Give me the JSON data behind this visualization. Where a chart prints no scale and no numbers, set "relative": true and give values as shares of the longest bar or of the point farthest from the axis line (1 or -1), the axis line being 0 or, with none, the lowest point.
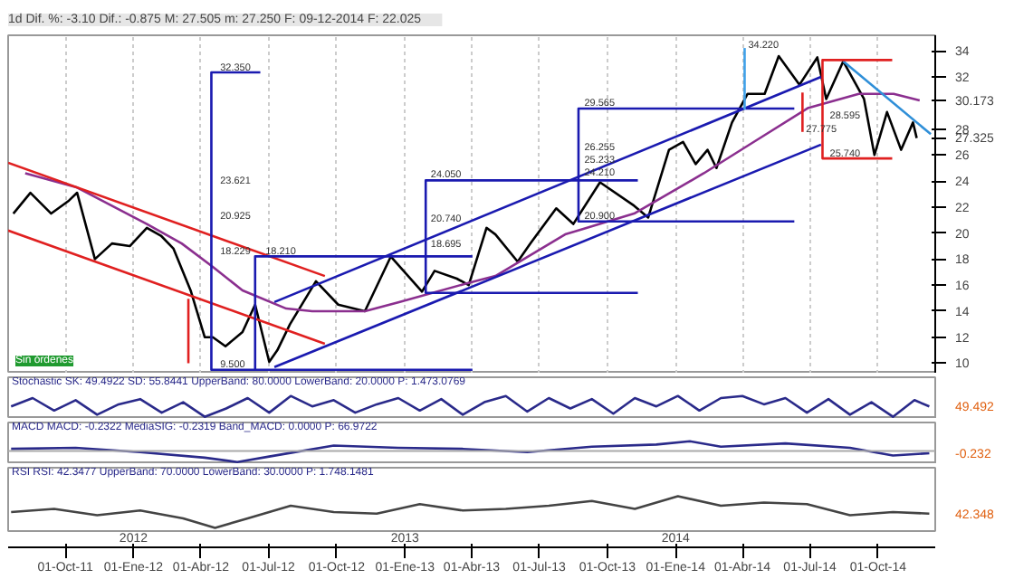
{
  "chart_data": [
    {
      "type": "line",
      "title": "1d  Dif. %: -3.10  Dif.: -0.875  M: 27.505  m: 27.250  F: 09-12-2014  F: 22.025",
      "xlim": [
        "2011-07-16",
        "2014-12-17"
      ],
      "ylim": [
        9.2,
        35.2
      ],
      "yticks": [
        10,
        12,
        14,
        16,
        18,
        20,
        22,
        24,
        26,
        28,
        {
          "value": 27.325,
          "label": "27.325"
        },
        {
          "value": 30.173,
          "label": "30.173"
        },
        32,
        34
      ],
      "xticks": [
        {
          "value": "2011-10-01",
          "label": null
        },
        {
          "value": "2012-01-01",
          "label": null
        },
        {
          "value": "2012-04-01",
          "label": null
        },
        {
          "value": "2012-07-01",
          "label": null
        },
        {
          "value": "2012-10-01",
          "label": null
        },
        {
          "value": "2013-01-01",
          "label": null
        },
        {
          "value": "2013-04-01",
          "label": null
        },
        {
          "value": "2013-07-01",
          "label": null
        },
        {
          "value": "2013-10-01",
          "label": null
        },
        {
          "value": "2014-01-01",
          "label": null
        },
        {
          "value": "2014-04-01",
          "label": null
        },
        {
          "value": "2014-07-01",
          "label": null
        },
        {
          "value": "2014-10-01",
          "label": null
        }
      ],
      "tick_labels": "y",
      "grid": "x",
      "series": [
        {
          "color": "#000000",
          "x": [
            "2011-07-23",
            "2011-08-15",
            "2011-09-12",
            "2011-10-06",
            "2011-10-17",
            "2011-11-10",
            "2011-12-03",
            "2011-12-27",
            "2012-01-19",
            "2012-02-07",
            "2012-02-24",
            "2012-03-18",
            "2012-04-06",
            "2012-04-17",
            "2012-05-04",
            "2012-05-27",
            "2012-06-13",
            "2012-07-02",
            "2012-07-13",
            "2012-07-30",
            "2012-09-03",
            "2012-10-03",
            "2012-11-08",
            "2012-12-13",
            "2013-01-24",
            "2013-02-10",
            "2013-03-12",
            "2013-03-28",
            "2013-04-21",
            "2013-05-03",
            "2013-06-02",
            "2013-06-19",
            "2013-07-24",
            "2013-08-16",
            "2013-09-21",
            "2013-11-06",
            "2013-11-25",
            "2013-12-23",
            "2014-01-11",
            "2014-01-28",
            "2014-02-13",
            "2014-02-25",
            "2014-03-18",
            "2014-04-08",
            "2014-05-01",
            "2014-05-20",
            "2014-06-17",
            "2014-07-11",
            "2014-07-23",
            "2014-08-15",
            "2014-09-12",
            "2014-09-26",
            "2014-10-13",
            "2014-11-01",
            "2014-11-17",
            "2014-11-22"
          ],
          "values": [
            21.5,
            23.1,
            21.5,
            22.5,
            23.1,
            18.0,
            19.2,
            19.0,
            20.4,
            19.8,
            18.8,
            15.6,
            12.0,
            12.0,
            11.3,
            12.4,
            14.5,
            10.1,
            11.0,
            13.0,
            16.3,
            14.5,
            14.0,
            18.2,
            15.5,
            17.1,
            16.5,
            16.0,
            20.4,
            19.9,
            17.8,
            19.2,
            21.9,
            20.7,
            23.9,
            22.1,
            21.2,
            26.4,
            27.0,
            25.3,
            26.4,
            25.0,
            28.5,
            30.7,
            30.7,
            33.6,
            31.4,
            33.5,
            30.3,
            33.2,
            30.3,
            26.0,
            29.3,
            26.4,
            28.5,
            27.3
          ]
        },
        {
          "color": "#8b2f8f",
          "x": [
            "2011-08-08",
            "2011-10-17",
            "2012-01-19",
            "2012-03-06",
            "2012-04-17",
            "2012-05-27",
            "2012-07-25",
            "2012-08-29",
            "2012-11-08",
            "2012-12-24",
            "2013-03-23",
            "2013-05-03",
            "2013-08-05",
            "2013-11-06",
            "2014-02-08",
            "2014-04-19",
            "2014-06-28",
            "2014-09-05",
            "2014-10-22",
            "2014-11-26"
          ],
          "values": [
            24.6,
            23.5,
            20.7,
            19.2,
            17.4,
            15.6,
            14.2,
            14.0,
            14.0,
            14.7,
            16.1,
            16.7,
            19.9,
            21.5,
            24.6,
            27.1,
            29.6,
            30.7,
            30.7,
            30.2
          ]
        },
        {
          "color": "#e02020",
          "x": [
            "2011-07-16",
            "2012-09-15"
          ],
          "values": [
            25.4,
            16.7
          ]
        },
        {
          "color": "#e02020",
          "x": [
            "2011-07-16",
            "2012-09-15"
          ],
          "values": [
            20.2,
            11.5
          ]
        },
        {
          "color": "#1a1ab0",
          "x": [
            "2012-07-09",
            "2014-07-16"
          ],
          "values": [
            14.7,
            32.0
          ]
        },
        {
          "color": "#1a1ab0",
          "x": [
            "2012-07-09",
            "2014-07-16"
          ],
          "values": [
            9.7,
            26.8
          ]
        },
        {
          "color": "#2f8fd8",
          "x": [
            "2014-08-15",
            "2014-12-11"
          ],
          "values": [
            33.2,
            27.6
          ]
        },
        {
          "color": "#1a1ab0",
          "x": [
            "2012-06-20",
            "2012-04-15",
            "2012-04-15",
            "2013-04-02"
          ],
          "values": [
            32.35,
            32.35,
            9.5,
            9.5
          ]
        },
        {
          "color": "#1a1ab0",
          "x": [
            "2013-04-02",
            "2012-06-13",
            "2012-06-13"
          ],
          "values": [
            18.21,
            18.21,
            9.5
          ]
        },
        {
          "color": "#1a1ab0",
          "x": [
            "2013-11-11",
            "2013-01-29",
            "2013-01-29",
            "2013-11-11"
          ],
          "values": [
            24.05,
            24.05,
            15.4,
            15.4
          ]
        },
        {
          "color": "#1a1ab0",
          "x": [
            "2014-06-10",
            "2013-08-23",
            "2013-08-23",
            "2014-06-10"
          ],
          "values": [
            29.565,
            29.565,
            20.9,
            20.9
          ]
        },
        {
          "color": "#e02020",
          "x": [
            "2014-10-20",
            "2014-07-18",
            "2014-07-18",
            "2014-10-20"
          ],
          "values": [
            33.3,
            33.3,
            25.74,
            25.74
          ]
        },
        {
          "color": "#3fa0e8",
          "x": [
            "2014-04-04",
            "2014-04-04"
          ],
          "values": [
            29.5,
            34.22
          ]
        },
        {
          "color": "#e02020",
          "x": [
            "2014-06-21",
            "2014-06-21"
          ],
          "values": [
            30.8,
            27.775
          ]
        },
        {
          "color": "#e02020",
          "x": [
            "2012-03-15",
            "2012-03-15"
          ],
          "values": [
            14.95,
            10.0
          ]
        }
      ],
      "annotations": [
        {
          "text": "32.350",
          "x": "2012-04-22",
          "y": 32.5
        },
        {
          "text": "23.621",
          "x": "2012-04-22",
          "y": 23.8
        },
        {
          "text": "20.925",
          "x": "2012-04-22",
          "y": 21.1
        },
        {
          "text": "18.229",
          "x": "2012-04-22",
          "y": 18.4
        },
        {
          "text": "9.500",
          "x": "2012-04-22",
          "y": 9.7
        },
        {
          "text": "18.210",
          "x": "2012-06-22",
          "y": 18.4
        },
        {
          "text": "24.050",
          "x": "2013-01-31",
          "y": 24.3
        },
        {
          "text": "20.740",
          "x": "2013-01-31",
          "y": 20.9
        },
        {
          "text": "18.695",
          "x": "2013-01-31",
          "y": 18.9
        },
        {
          "text": "29.565",
          "x": "2013-08-26",
          "y": 29.8
        },
        {
          "text": "26.255",
          "x": "2013-08-26",
          "y": 26.4
        },
        {
          "text": "25.233",
          "x": "2013-08-26",
          "y": 25.4
        },
        {
          "text": "24.210",
          "x": "2013-08-26",
          "y": 24.4
        },
        {
          "text": "20.900",
          "x": "2013-08-26",
          "y": 21.1
        },
        {
          "text": "28.595",
          "x": "2014-07-23",
          "y": 28.8
        },
        {
          "text": "25.740",
          "x": "2014-07-23",
          "y": 25.9
        },
        {
          "text": "34.220",
          "x": "2014-04-04",
          "y": 34.22
        },
        {
          "text": "27.775",
          "x": "2014-06-21",
          "y": 27.775
        },
        "Sin órdenes"
      ]
    },
    {
      "type": "line",
      "title": "Stochastic SK: 49.4922  SD: 55.8441  UpperBand: 80.0000  LowerBand: 20.0000  P: 1.473.0769",
      "relative": true,
      "tick_labels": false,
      "xlim": [
        "2011-07-16",
        "2014-12-17"
      ],
      "x": [
        "2011-07-20",
        "2011-08-18",
        "2011-09-16",
        "2011-10-15",
        "2011-11-13",
        "2011-12-12",
        "2012-01-10",
        "2012-02-08",
        "2012-03-08",
        "2012-04-06",
        "2012-05-05",
        "2012-06-03",
        "2012-07-02",
        "2012-07-31",
        "2012-08-29",
        "2012-09-27",
        "2012-10-26",
        "2012-11-24",
        "2012-12-23",
        "2013-01-21",
        "2013-02-19",
        "2013-03-20",
        "2013-04-18",
        "2013-05-17",
        "2013-06-15",
        "2013-07-14",
        "2013-08-12",
        "2013-09-10",
        "2013-10-09",
        "2013-11-07",
        "2013-12-06",
        "2014-01-04",
        "2014-02-02",
        "2014-03-03",
        "2014-04-01",
        "2014-04-30",
        "2014-05-29",
        "2014-06-27",
        "2014-07-26",
        "2014-08-24",
        "2014-09-22",
        "2014-10-21",
        "2014-11-19",
        "2014-12-09"
      ],
      "series": [
        {
          "color": "#2a2a8a",
          "values": [
            0.5,
            0.9,
            0.3,
            0.8,
            0.1,
            0.6,
            0.85,
            0.2,
            0.7,
            0,
            0.4,
            0.9,
            0.2,
            1,
            0.5,
            0.8,
            0.2,
            0.6,
            0.9,
            0.3,
            0.85,
            0.1,
            0.7,
            1,
            0.25,
            0.9,
            0.4,
            0.85,
            0.15,
            0.9,
            0.5,
            1,
            0.3,
            0.9,
            1,
            0.6,
            0.9,
            0.2,
            0.85,
            0.1,
            0.7,
            0,
            0.8,
            0.5
          ]
        }
      ],
      "annotations": [
        "49.492"
      ]
    },
    {
      "type": "line",
      "title": "MACD  MACD: -0.2322  MediaSIG: -0.2319  Band_MACD: 0.0000  P: 66.9722",
      "relative": true,
      "tick_labels": false,
      "xlim": [
        "2011-07-16",
        "2014-12-17"
      ],
      "ref_lines": [
        {
          "axis": "y",
          "value": 0,
          "color": "#aaaaaa"
        }
      ],
      "x": [
        "2011-07-20",
        "2011-10-15",
        "2012-01-10",
        "2012-04-06",
        "2012-05-20",
        "2012-07-02",
        "2012-09-27",
        "2012-12-23",
        "2013-03-20",
        "2013-06-15",
        "2013-09-10",
        "2013-12-06",
        "2014-01-20",
        "2014-03-03",
        "2014-05-29",
        "2014-08-24",
        "2014-10-21",
        "2014-12-09"
      ],
      "series": [
        {
          "color": "#2a2a8a",
          "values": [
            0.2,
            0.3,
            -0.1,
            -0.6,
            -1.0,
            -0.5,
            0.5,
            0.3,
            0.2,
            -0.1,
            0.4,
            0.6,
            0.9,
            0.4,
            0.7,
            0.3,
            -0.4,
            -0.2
          ]
        }
      ],
      "annotations": [
        "-0.232"
      ]
    },
    {
      "type": "line",
      "title": "RSI  RSI: 42.3477  UpperBand: 70.0000  LowerBand: 30.0000  P: 1.748.1481",
      "relative": true,
      "tick_labels": "x",
      "xlim": [
        "2011-07-16",
        "2014-12-17"
      ],
      "xticks": [
        {
          "value": "2011-10-01",
          "label": "01-Oct-11"
        },
        {
          "value": "2012-01-01",
          "label": "01-Ene-12"
        },
        {
          "value": "2012-04-01",
          "label": "01-Abr-12"
        },
        {
          "value": "2012-07-01",
          "label": "01-Jul-12"
        },
        {
          "value": "2012-10-01",
          "label": "01-Oct-12"
        },
        {
          "value": "2013-01-01",
          "label": "01-Ene-13"
        },
        {
          "value": "2013-04-01",
          "label": "01-Abr-13"
        },
        {
          "value": "2013-07-01",
          "label": "01-Jul-13"
        },
        {
          "value": "2013-10-01",
          "label": "01-Oct-13"
        },
        {
          "value": "2014-01-01",
          "label": "01-Ene-14"
        },
        {
          "value": "2014-04-01",
          "label": "01-Abr-14"
        },
        {
          "value": "2014-07-01",
          "label": "01-Jul-14"
        },
        {
          "value": "2014-10-01",
          "label": "01-Oct-14"
        }
      ],
      "x2lim": [
        "2011-07-16",
        "2014-12-17"
      ],
      "x2ticks": [
        {
          "value": "2012-01-01",
          "label": "2012"
        },
        {
          "value": "2013-01-01",
          "label": "2013"
        },
        {
          "value": "2014-01-01",
          "label": "2014"
        }
      ],
      "x": [
        "2011-07-20",
        "2011-09-16",
        "2011-11-13",
        "2012-01-10",
        "2012-03-08",
        "2012-04-20",
        "2012-06-03",
        "2012-07-31",
        "2012-09-27",
        "2012-11-24",
        "2013-01-21",
        "2013-03-20",
        "2013-05-17",
        "2013-07-14",
        "2013-09-10",
        "2013-11-07",
        "2014-01-04",
        "2014-03-03",
        "2014-04-30",
        "2014-06-27",
        "2014-08-24",
        "2014-10-21",
        "2014-12-09"
      ],
      "series": [
        {
          "color": "#444444",
          "values": [
            0.5,
            0.6,
            0.4,
            0.55,
            0.3,
            0,
            0.3,
            0.7,
            0.5,
            0.45,
            0.75,
            0.55,
            0.6,
            0.7,
            0.85,
            0.6,
            1,
            0.7,
            0.8,
            0.75,
            0.4,
            0.5,
            0.45
          ]
        }
      ],
      "annotations": [
        "42.348"
      ]
    }
  ]
}
